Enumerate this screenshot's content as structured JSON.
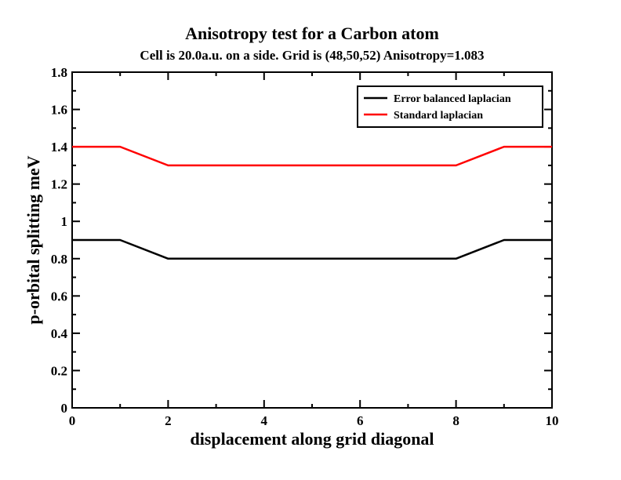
{
  "chart_data": {
    "type": "line",
    "title": "Anisotropy test for a Carbon atom",
    "subtitle": "Cell is 20.0a.u. on a side. Grid is (48,50,52) Anisotropy=1.083",
    "xlabel": "displacement along grid diagonal",
    "ylabel": "p-orbital splitting meV",
    "xlim": [
      0,
      10
    ],
    "ylim": [
      0,
      1.8
    ],
    "x_ticks": [
      "0",
      "2",
      "4",
      "6",
      "8",
      "10"
    ],
    "y_ticks": [
      "0",
      "0.2",
      "0.4",
      "0.6",
      "0.8",
      "1",
      "1.2",
      "1.4",
      "1.6",
      "1.8"
    ],
    "grid": false,
    "legend_position": "top-right",
    "x": [
      0,
      1,
      2,
      3,
      4,
      5,
      6,
      7,
      8,
      9,
      10
    ],
    "series": [
      {
        "name": "Error balanced laplacian",
        "color": "#000000",
        "values": [
          0.9,
          0.9,
          0.8,
          0.8,
          0.8,
          0.8,
          0.8,
          0.8,
          0.8,
          0.9,
          0.9
        ]
      },
      {
        "name": "Standard laplacian",
        "color": "#ff0000",
        "values": [
          1.4,
          1.4,
          1.3,
          1.3,
          1.3,
          1.3,
          1.3,
          1.3,
          1.3,
          1.4,
          1.4
        ]
      }
    ]
  }
}
